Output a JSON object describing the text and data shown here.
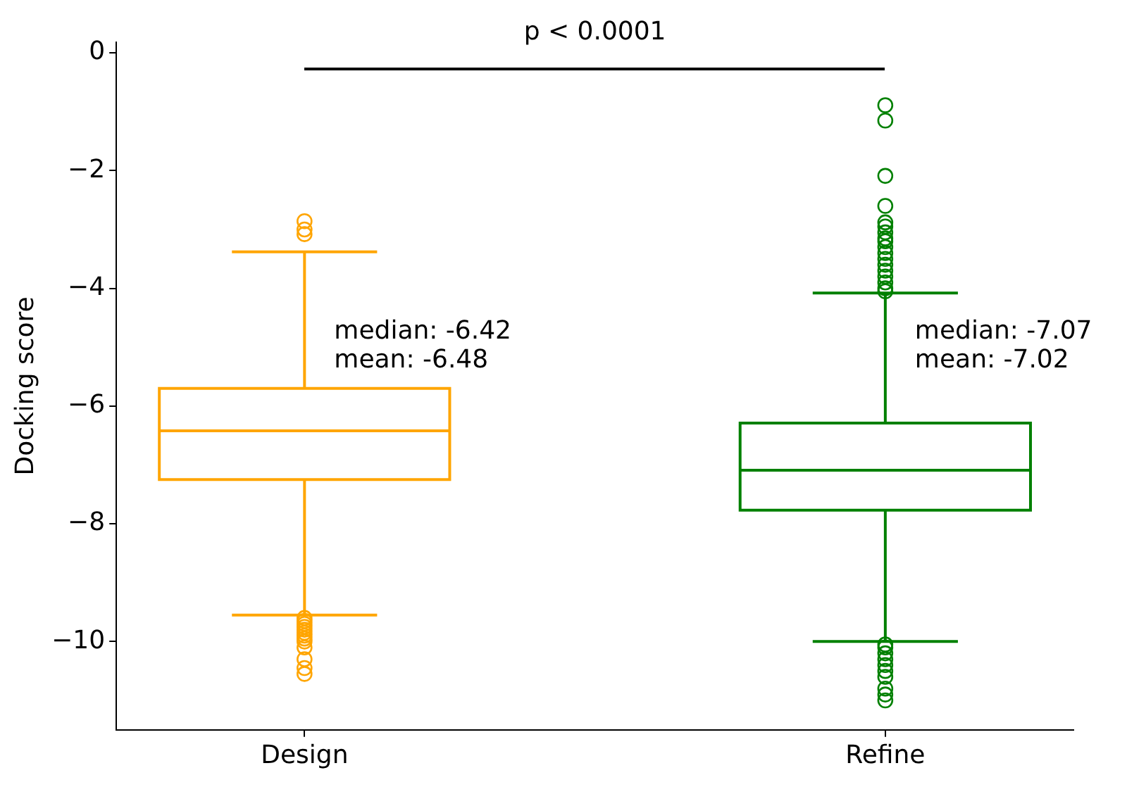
{
  "chart_data": {
    "type": "box",
    "ylabel": "Docking score",
    "categories": [
      "Design",
      "Refine"
    ],
    "colors": [
      "#ffa500",
      "#008000"
    ],
    "boxes": [
      {
        "low": -3.38,
        "q1": -7.25,
        "median": -6.42,
        "q3": -5.7,
        "high": -9.55,
        "outliers": [
          -2.86,
          -3.0,
          -3.08,
          -9.6,
          -9.65,
          -9.7,
          -9.75,
          -9.8,
          -9.85,
          -9.9,
          -9.95,
          -10.0,
          -10.1,
          -10.3,
          -10.45,
          -10.55
        ]
      },
      {
        "low": -10.0,
        "q1": -7.77,
        "median": -7.09,
        "q3": -6.29,
        "high": -4.08,
        "outliers": [
          -0.89,
          -1.15,
          -2.09,
          -2.6,
          -2.88,
          -2.95,
          -3.05,
          -3.15,
          -3.2,
          -3.3,
          -3.4,
          -3.5,
          -3.6,
          -3.7,
          -3.8,
          -3.9,
          -4.0,
          -4.05,
          -10.05,
          -10.1,
          -10.2,
          -10.3,
          -10.4,
          -10.5,
          -10.6,
          -10.8,
          -10.9,
          -11.0
        ]
      }
    ],
    "ylim": [
      -11.5,
      0.18
    ],
    "yticks": [
      {
        "value": 0,
        "label": "0"
      },
      {
        "value": -2,
        "label": "−2"
      },
      {
        "value": -4,
        "label": "−4"
      },
      {
        "value": -6,
        "label": "−6"
      },
      {
        "value": -8,
        "label": "−8"
      },
      {
        "value": -10,
        "label": "−10"
      }
    ],
    "grid": false,
    "legend": false,
    "marker": "circle",
    "annotations": [
      "p < 0.0001",
      {
        "text": "median: -6.42",
        "x": "Design",
        "y": -4.85
      },
      {
        "text": "mean: -6.48",
        "x": "Design",
        "y": -5.35
      },
      {
        "text": "median: -7.07",
        "x": "Refine",
        "y": -4.85
      },
      {
        "text": "mean: -7.02",
        "x": "Refine",
        "y": -5.35
      }
    ]
  }
}
